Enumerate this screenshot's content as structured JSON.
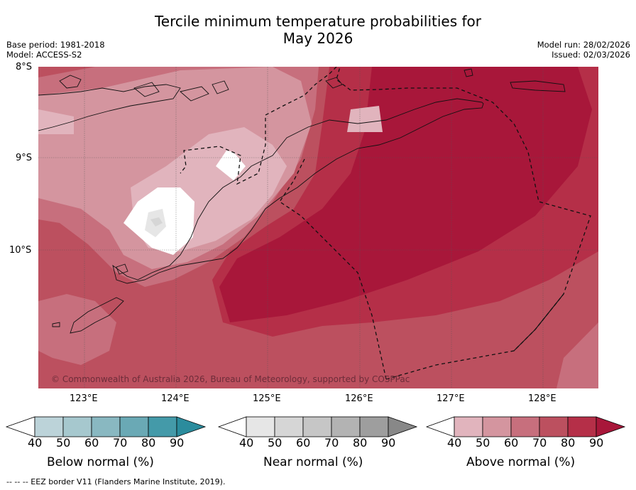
{
  "header": {
    "title_line1": "Tercile minimum temperature probabilities for",
    "title_line2": "May 2026",
    "base_period": "Base period: 1981-2018",
    "model": "Model: ACCESS-S2",
    "model_run": "Model run: 28/02/2026",
    "issued": "Issued: 02/03/2026"
  },
  "map": {
    "lat_labels": [
      "8°S",
      "9°S",
      "10°S"
    ],
    "lon_labels": [
      "123°E",
      "124°E",
      "125°E",
      "126°E",
      "127°E",
      "128°E"
    ],
    "copyright": "© Commonwealth of Australia 2026, Bureau of Meteorology, supported by COSPPac"
  },
  "colorbars": [
    {
      "title": "Below normal (%)",
      "ticks": [
        "40",
        "50",
        "60",
        "70",
        "80",
        "90"
      ],
      "colors": [
        "#bcd3d9",
        "#a6c8ce",
        "#89b8c1",
        "#6aa9b5",
        "#449aa9",
        "#2b8c9d"
      ]
    },
    {
      "title": "Near normal (%)",
      "ticks": [
        "40",
        "50",
        "60",
        "70",
        "80",
        "90"
      ],
      "colors": [
        "#e6e6e6",
        "#d6d6d6",
        "#c6c6c6",
        "#b3b3b3",
        "#9e9e9e",
        "#888888"
      ]
    },
    {
      "title": "Above normal (%)",
      "ticks": [
        "40",
        "50",
        "60",
        "70",
        "80",
        "90"
      ],
      "colors": [
        "#e1b4bd",
        "#d4959f",
        "#c76f7d",
        "#bc505f",
        "#b52f48",
        "#a8173a"
      ]
    }
  ],
  "footnote": "--  --  -- EEZ border V11 (Flanders Marine Institute, 2019)."
}
